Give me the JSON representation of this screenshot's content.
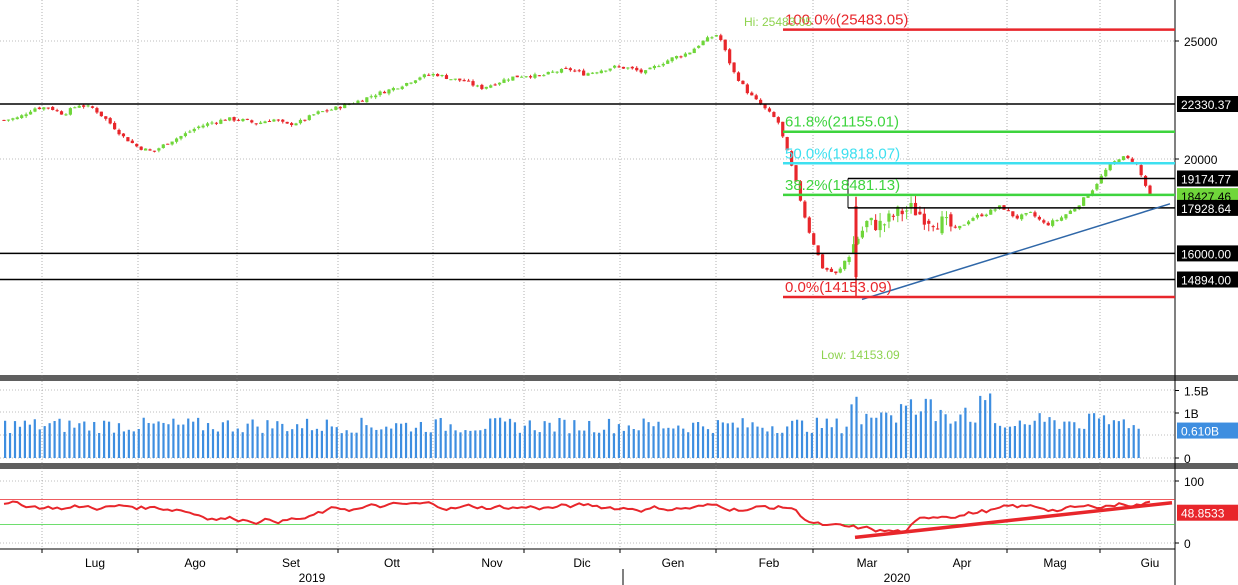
{
  "chart_data": [
    {
      "type": "candlestick",
      "panel": "price",
      "x": [
        "Lug",
        "Ago",
        "Set",
        "Ott",
        "Nov",
        "Dic",
        "Gen",
        "Feb",
        "Mar",
        "Apr",
        "Mag",
        "Giu"
      ],
      "years": [
        "2019",
        "2020"
      ],
      "ylim": [
        13100,
        26100
      ],
      "y_ticks": [
        "25000",
        "20000"
      ],
      "closes_weekly": [
        21650,
        21750,
        22150,
        22200,
        21900,
        22300,
        22150,
        21600,
        20950,
        20500,
        20300,
        20700,
        21000,
        21350,
        21550,
        21700,
        21650,
        21500,
        21700,
        21450,
        21600,
        21950,
        22100,
        22300,
        22500,
        22750,
        22950,
        23200,
        23500,
        23600,
        23400,
        23300,
        23000,
        23200,
        23450,
        23550,
        23500,
        23700,
        23800,
        23600,
        23750,
        23900,
        23850,
        23650,
        24000,
        24300,
        24500,
        25000,
        25300,
        23700,
        22800,
        22200,
        21600,
        19500,
        17100,
        15400,
        15100,
        16300,
        17300,
        17200,
        17700,
        17900,
        17500,
        17300,
        17000,
        17500,
        17700,
        18000,
        17500,
        17700,
        17200,
        17500,
        17950,
        18600,
        19500,
        20100,
        19900,
        18427
      ],
      "price_labels": [
        {
          "text": "22330.37",
          "value": 22330.37,
          "color": "#000000"
        },
        {
          "text": "19174.77",
          "value": 19174.77,
          "color": "#000000"
        },
        {
          "text": "18427.46",
          "value": 18427.46,
          "color": "#6fd63a"
        },
        {
          "text": "17928.64",
          "value": 17928.64,
          "color": "#000000"
        },
        {
          "text": "16000.00",
          "value": 16000.0,
          "color": "#000000"
        },
        {
          "text": "14894.00",
          "value": 14894.0,
          "color": "#000000"
        }
      ],
      "fibonacci": [
        {
          "label": "100.0%(25483.05)",
          "value": 25483.05,
          "color": "#e8262b"
        },
        {
          "label": "61.8%(21155.01)",
          "value": 21155.01,
          "color": "#3ed43e"
        },
        {
          "label": "50.0%(19818.07)",
          "value": 19818.07,
          "color": "#3ee0f0"
        },
        {
          "label": "38.2%(18481.13)",
          "value": 18481.13,
          "color": "#3ed43e"
        },
        {
          "label": "0.0%(14153.09)",
          "value": 14153.09,
          "color": "#e8262b"
        }
      ],
      "annotations": {
        "high": "Hi: 25483.05",
        "low": "Low: 14153.09"
      },
      "trendline": {
        "from": [
          "Mar",
          14050
        ],
        "to": [
          "Giu",
          18100
        ],
        "color": "#2f67a8"
      }
    },
    {
      "type": "bar",
      "panel": "volume",
      "ylim": [
        0,
        1.6
      ],
      "y_ticks": [
        "1.5B",
        "1B",
        "0"
      ],
      "last_label": "0.610B",
      "color": "#3e8ee0"
    },
    {
      "type": "line",
      "panel": "rsi",
      "ylim": [
        -10,
        110
      ],
      "y_ticks": [
        "100",
        "0"
      ],
      "levels": [
        70,
        30
      ],
      "last_label": "48.8533",
      "color": "#e8262b"
    }
  ],
  "colors": {
    "up": "#6fd63a",
    "down": "#e8262b",
    "grid": "#7f7f7f"
  }
}
